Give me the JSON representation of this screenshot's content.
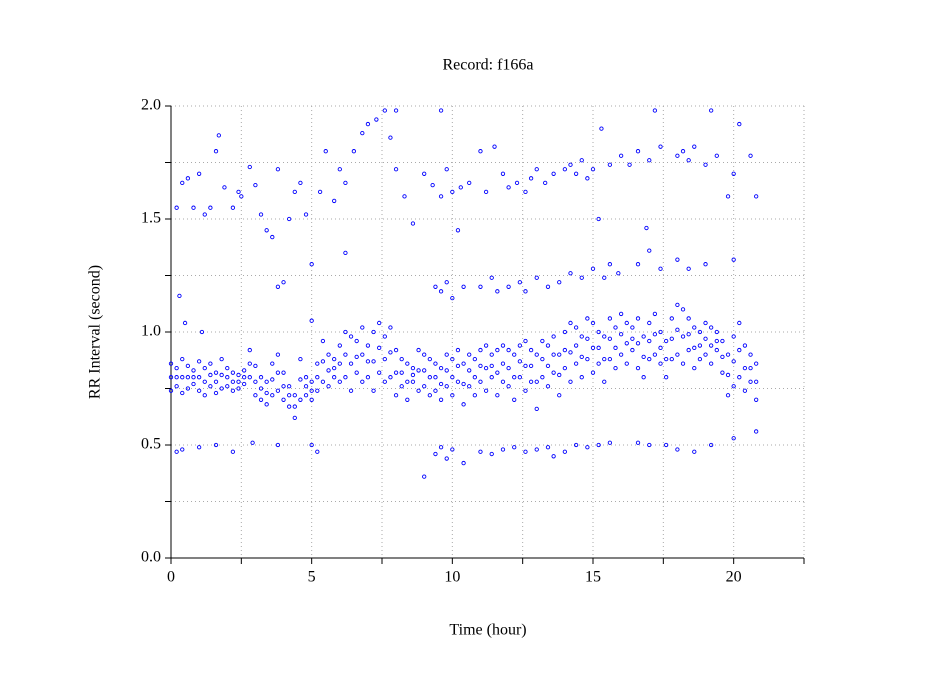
{
  "chart_data": {
    "type": "scatter",
    "title": "Record:  f166a",
    "xlabel": "Time (hour)",
    "ylabel": "RR Interval (second)",
    "color": "#0000ff",
    "grid": true,
    "xlim": [
      0,
      22.5
    ],
    "xticks": [
      0,
      5,
      10,
      15,
      20
    ],
    "minor_xticks": [
      2.5,
      7.5,
      12.5,
      17.5,
      22.5
    ],
    "ylim": [
      0,
      2
    ],
    "yticks": [
      {
        "value": 0,
        "label": "0.0"
      },
      0.5,
      {
        "value": 1,
        "label": "1.0"
      },
      1.5,
      {
        "value": 2,
        "label": "2.0"
      }
    ],
    "minor_yticks": [
      0.25,
      0.75,
      1.25,
      1.75
    ],
    "x": [
      0,
      0,
      0,
      0.2,
      0.2,
      0.2,
      0.4,
      0.4,
      0.4,
      0.6,
      0.6,
      0.6,
      0.8,
      0.8,
      0.8,
      1,
      1,
      1,
      1.2,
      1.2,
      1.2,
      1.4,
      1.4,
      1.4,
      1.6,
      1.6,
      1.6,
      1.8,
      1.8,
      1.8,
      2,
      2,
      2,
      2.2,
      2.2,
      2.2,
      2.4,
      2.4,
      2.4,
      2.6,
      2.6,
      2.6,
      2.8,
      2.8,
      2.8,
      3,
      3,
      3,
      3.2,
      3.2,
      3.2,
      3.4,
      3.4,
      3.4,
      3.6,
      3.6,
      3.6,
      3.8,
      3.8,
      3.8,
      4,
      4,
      4,
      4.2,
      4.2,
      4.2,
      4.4,
      4.4,
      4.4,
      4.6,
      4.6,
      4.6,
      4.8,
      4.8,
      4.8,
      5,
      5,
      5,
      5.2,
      5.2,
      5.2,
      5.4,
      5.4,
      5.4,
      5.6,
      5.6,
      5.6,
      5.8,
      5.8,
      5.8,
      6,
      6,
      6,
      6.2,
      6.2,
      6.2,
      6.4,
      6.4,
      6.4,
      6.6,
      6.6,
      6.6,
      6.8,
      6.8,
      6.8,
      7,
      7,
      7,
      7.2,
      7.2,
      7.2,
      7.4,
      7.4,
      7.4,
      7.6,
      7.6,
      7.6,
      7.8,
      7.8,
      7.8,
      8,
      8,
      8,
      8.2,
      8.2,
      8.2,
      8.4,
      8.4,
      8.4,
      8.6,
      8.6,
      8.6,
      8.8,
      8.8,
      8.8,
      9,
      9,
      9,
      9.2,
      9.2,
      9.2,
      9.4,
      9.4,
      9.4,
      9.6,
      9.6,
      9.6,
      9.8,
      9.8,
      9.8,
      10,
      10,
      10,
      10.2,
      10.2,
      10.2,
      10.4,
      10.4,
      10.4,
      10.6,
      10.6,
      10.6,
      10.8,
      10.8,
      10.8,
      11,
      11,
      11,
      11.2,
      11.2,
      11.2,
      11.4,
      11.4,
      11.4,
      11.6,
      11.6,
      11.6,
      11.8,
      11.8,
      11.8,
      12,
      12,
      12,
      12.2,
      12.2,
      12.2,
      12.4,
      12.4,
      12.4,
      12.6,
      12.6,
      12.6,
      12.8,
      12.8,
      12.8,
      13,
      13,
      13,
      13.2,
      13.2,
      13.2,
      13.4,
      13.4,
      13.4,
      13.6,
      13.6,
      13.6,
      13.8,
      13.8,
      13.8,
      14,
      14,
      14,
      14.2,
      14.2,
      14.2,
      14.4,
      14.4,
      14.4,
      14.6,
      14.6,
      14.6,
      14.8,
      14.8,
      14.8,
      15,
      15,
      15,
      15.2,
      15.2,
      15.2,
      15.4,
      15.4,
      15.4,
      15.6,
      15.6,
      15.6,
      15.8,
      15.8,
      15.8,
      16,
      16,
      16,
      16.2,
      16.2,
      16.2,
      16.4,
      16.4,
      16.4,
      16.6,
      16.6,
      16.6,
      16.8,
      16.8,
      16.8,
      17,
      17,
      17,
      17.2,
      17.2,
      17.2,
      17.4,
      17.4,
      17.4,
      17.6,
      17.6,
      17.6,
      17.8,
      17.8,
      17.8,
      18,
      18,
      18,
      18.2,
      18.2,
      18.2,
      18.4,
      18.4,
      18.4,
      18.6,
      18.6,
      18.6,
      18.8,
      18.8,
      18.8,
      19,
      19,
      19,
      19.2,
      19.2,
      19.2,
      19.4,
      19.4,
      19.4,
      19.6,
      19.6,
      19.6,
      19.8,
      19.8,
      19.8,
      20,
      20,
      20,
      20.2,
      20.2,
      20.2,
      20.4,
      20.4,
      20.4,
      20.6,
      20.6,
      20.6,
      20.8,
      20.8,
      20.8,
      0.2,
      0.4,
      1,
      1.6,
      2.2,
      2.9,
      3.8,
      5,
      5.2,
      9.4,
      9.6,
      9.8,
      10,
      10.4,
      11,
      11.4,
      11.8,
      12.2,
      12.6,
      13,
      13.4,
      13.6,
      14,
      14.4,
      14.8,
      15.2,
      15.6,
      16.6,
      17,
      17.6,
      18,
      18.6,
      19.2,
      20,
      9,
      20.8,
      9.4,
      9.6,
      9.8,
      10,
      10.4,
      11,
      11.4,
      11.6,
      12,
      12.4,
      12.6,
      13,
      13.4,
      13.8,
      14.2,
      14.6,
      15,
      15.4,
      15.6,
      15.9,
      16.6,
      17,
      17.4,
      18,
      18.4,
      19,
      20,
      16.9,
      0.3,
      0.5,
      1.1,
      4,
      5,
      0.2,
      0.4,
      0.6,
      0.8,
      1,
      1.2,
      1.4,
      1.6,
      1.7,
      1.9,
      2.2,
      2.5,
      2.8,
      3,
      3.2,
      3.4,
      3.6,
      3.8,
      4.2,
      4.4,
      4.6,
      4.8,
      5,
      5.3,
      5.5,
      5.8,
      6,
      6.2,
      6.5,
      6.8,
      7,
      7.3,
      7.6,
      7.8,
      8,
      8.3,
      8.6,
      9,
      9.3,
      9.6,
      9.8,
      10,
      10.3,
      10.6,
      11,
      11.2,
      11.5,
      11.8,
      12,
      12.3,
      12.6,
      12.8,
      13,
      13.3,
      13.6,
      14,
      14.2,
      14.4,
      14.6,
      14.8,
      15,
      15.3,
      15.6,
      16,
      16.3,
      16.6,
      17,
      17.2,
      17.4,
      18,
      18.2,
      18.4,
      18.6,
      19,
      19.2,
      19.4,
      19.8,
      20,
      20.2,
      20.6,
      20.8,
      6.2,
      3.8,
      2.4,
      10.2,
      15.2,
      8,
      9.6
    ],
    "values": [
      0.74,
      0.8,
      0.86,
      0.76,
      0.8,
      0.84,
      0.73,
      0.8,
      0.88,
      0.75,
      0.8,
      0.85,
      0.77,
      0.8,
      0.83,
      0.74,
      0.8,
      0.87,
      0.72,
      0.78,
      0.84,
      0.76,
      0.81,
      0.86,
      0.73,
      0.78,
      0.82,
      0.75,
      0.81,
      0.88,
      0.76,
      0.8,
      0.84,
      0.74,
      0.78,
      0.82,
      0.75,
      0.78,
      0.81,
      0.77,
      0.8,
      0.83,
      0.8,
      0.86,
      0.92,
      0.72,
      0.78,
      0.85,
      0.7,
      0.75,
      0.8,
      0.68,
      0.73,
      0.78,
      0.72,
      0.79,
      0.86,
      0.74,
      0.82,
      0.9,
      0.7,
      0.76,
      0.82,
      0.67,
      0.72,
      0.76,
      0.62,
      0.67,
      0.72,
      0.7,
      0.79,
      0.88,
      0.72,
      0.76,
      0.8,
      0.7,
      0.74,
      0.78,
      0.74,
      0.8,
      0.86,
      0.78,
      0.87,
      0.96,
      0.76,
      0.83,
      0.9,
      0.8,
      0.84,
      0.88,
      0.78,
      0.86,
      0.94,
      0.8,
      0.9,
      1,
      0.74,
      0.86,
      0.98,
      0.82,
      0.89,
      0.96,
      0.78,
      0.9,
      1.02,
      0.8,
      0.87,
      0.94,
      0.74,
      0.87,
      1,
      0.82,
      0.93,
      1.04,
      0.78,
      0.88,
      0.98,
      0.8,
      0.91,
      1.02,
      0.72,
      0.82,
      0.92,
      0.76,
      0.82,
      0.88,
      0.7,
      0.78,
      0.86,
      0.78,
      0.81,
      0.84,
      0.74,
      0.83,
      0.92,
      0.76,
      0.83,
      0.9,
      0.72,
      0.8,
      0.88,
      0.74,
      0.8,
      0.86,
      0.7,
      0.77,
      0.84,
      0.76,
      0.83,
      0.9,
      0.72,
      0.8,
      0.88,
      0.78,
      0.85,
      0.92,
      0.68,
      0.77,
      0.86,
      0.76,
      0.83,
      0.9,
      0.72,
      0.8,
      0.88,
      0.78,
      0.85,
      0.92,
      0.74,
      0.84,
      0.94,
      0.8,
      0.85,
      0.9,
      0.72,
      0.82,
      0.92,
      0.78,
      0.86,
      0.94,
      0.76,
      0.84,
      0.92,
      0.7,
      0.8,
      0.9,
      0.8,
      0.87,
      0.94,
      0.74,
      0.85,
      0.96,
      0.78,
      0.85,
      0.92,
      0.66,
      0.78,
      0.9,
      0.8,
      0.88,
      0.96,
      0.76,
      0.85,
      0.94,
      0.82,
      0.9,
      0.98,
      0.72,
      0.81,
      0.9,
      0.84,
      0.92,
      1,
      0.78,
      0.91,
      1.04,
      0.86,
      0.94,
      1.02,
      0.8,
      0.89,
      0.98,
      0.88,
      0.97,
      1.06,
      0.82,
      0.93,
      1.04,
      0.86,
      0.93,
      1,
      0.78,
      0.88,
      0.98,
      0.88,
      0.97,
      1.06,
      0.84,
      0.93,
      1.02,
      0.9,
      0.99,
      1.08,
      0.86,
      0.95,
      1.04,
      0.92,
      0.97,
      1.02,
      0.84,
      0.95,
      1.06,
      0.8,
      0.89,
      0.98,
      0.88,
      0.96,
      1.04,
      0.9,
      0.99,
      1.08,
      0.86,
      0.93,
      1,
      0.8,
      0.88,
      0.96,
      0.88,
      0.97,
      1.06,
      0.9,
      1.01,
      1.12,
      0.86,
      0.98,
      1.1,
      0.92,
      0.99,
      1.06,
      0.84,
      0.93,
      1.02,
      0.88,
      0.94,
      1,
      0.9,
      0.97,
      1.04,
      0.86,
      0.94,
      1.02,
      0.92,
      0.96,
      1,
      0.82,
      0.89,
      0.96,
      0.72,
      0.81,
      0.9,
      0.76,
      0.87,
      0.98,
      0.8,
      0.92,
      1.04,
      0.74,
      0.84,
      0.94,
      0.78,
      0.84,
      0.9,
      0.7,
      0.78,
      0.86,
      0.47,
      0.48,
      0.49,
      0.5,
      0.47,
      0.51,
      0.5,
      0.5,
      0.47,
      0.46,
      0.49,
      0.44,
      0.48,
      0.42,
      0.47,
      0.46,
      0.48,
      0.49,
      0.47,
      0.48,
      0.49,
      0.45,
      0.47,
      0.5,
      0.49,
      0.5,
      0.51,
      0.51,
      0.5,
      0.5,
      0.48,
      0.47,
      0.5,
      0.53,
      0.36,
      0.56,
      1.2,
      1.18,
      1.22,
      1.15,
      1.2,
      1.2,
      1.24,
      1.18,
      1.2,
      1.22,
      1.18,
      1.24,
      1.2,
      1.22,
      1.26,
      1.24,
      1.28,
      1.24,
      1.3,
      1.26,
      1.3,
      1.36,
      1.28,
      1.32,
      1.28,
      1.3,
      1.32,
      1.46,
      1.16,
      1.04,
      1,
      1.22,
      1.05,
      1.55,
      1.66,
      1.68,
      1.55,
      1.7,
      1.52,
      1.55,
      1.8,
      1.87,
      1.64,
      1.55,
      1.6,
      1.73,
      1.65,
      1.52,
      1.45,
      1.42,
      1.72,
      1.5,
      1.62,
      1.66,
      1.52,
      1.3,
      1.62,
      1.8,
      1.58,
      1.72,
      1.66,
      1.8,
      1.88,
      1.92,
      1.94,
      1.98,
      1.86,
      1.72,
      1.6,
      1.48,
      1.7,
      1.65,
      1.6,
      1.72,
      1.62,
      1.64,
      1.66,
      1.8,
      1.62,
      1.82,
      1.7,
      1.64,
      1.66,
      1.62,
      1.68,
      1.72,
      1.66,
      1.7,
      1.72,
      1.74,
      1.7,
      1.76,
      1.68,
      1.72,
      1.9,
      1.74,
      1.78,
      1.74,
      1.8,
      1.76,
      1.98,
      1.82,
      1.78,
      1.8,
      1.76,
      1.82,
      1.74,
      1.98,
      1.78,
      1.6,
      1.7,
      1.92,
      1.78,
      1.6,
      1.35,
      1.2,
      1.62,
      1.45,
      1.5,
      1.98,
      1.98
    ]
  }
}
